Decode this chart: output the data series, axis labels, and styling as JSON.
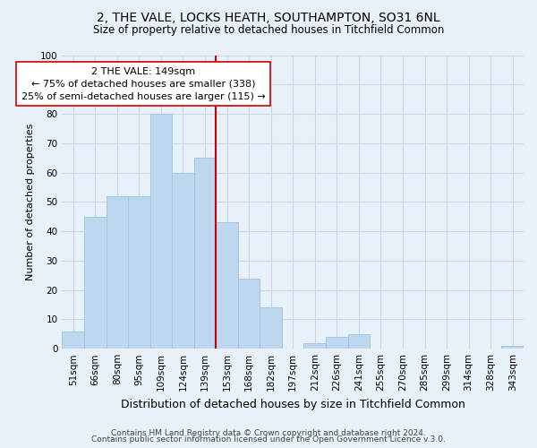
{
  "title1": "2, THE VALE, LOCKS HEATH, SOUTHAMPTON, SO31 6NL",
  "title2": "Size of property relative to detached houses in Titchfield Common",
  "xlabel": "Distribution of detached houses by size in Titchfield Common",
  "ylabel": "Number of detached properties",
  "bar_labels": [
    "51sqm",
    "66sqm",
    "80sqm",
    "95sqm",
    "109sqm",
    "124sqm",
    "139sqm",
    "153sqm",
    "168sqm",
    "182sqm",
    "197sqm",
    "212sqm",
    "226sqm",
    "241sqm",
    "255sqm",
    "270sqm",
    "285sqm",
    "299sqm",
    "314sqm",
    "328sqm",
    "343sqm"
  ],
  "bar_values": [
    6,
    45,
    52,
    52,
    80,
    60,
    65,
    43,
    24,
    14,
    0,
    2,
    4,
    5,
    0,
    0,
    0,
    0,
    0,
    0,
    1
  ],
  "bar_color": "#bdd7ee",
  "bar_edge_color": "#9dc3e0",
  "vline_color": "#cc0000",
  "ylim": [
    0,
    100
  ],
  "annotation_title": "2 THE VALE: 149sqm",
  "annotation_line1": "← 75% of detached houses are smaller (338)",
  "annotation_line2": "25% of semi-detached houses are larger (115) →",
  "annotation_box_color": "#ffffff",
  "annotation_box_edge": "#cc0000",
  "footer1": "Contains HM Land Registry data © Crown copyright and database right 2024.",
  "footer2": "Contains public sector information licensed under the Open Government Licence v.3.0.",
  "grid_color": "#c8d8e8",
  "background_color": "#e8f0f8",
  "title1_fontsize": 10,
  "title2_fontsize": 8.5,
  "xlabel_fontsize": 9,
  "ylabel_fontsize": 8,
  "tick_fontsize": 7.5,
  "annotation_fontsize": 8,
  "footer_fontsize": 6.5
}
